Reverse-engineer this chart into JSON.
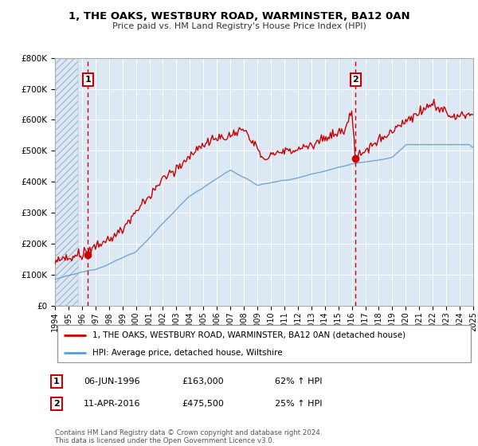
{
  "title": "1, THE OAKS, WESTBURY ROAD, WARMINSTER, BA12 0AN",
  "subtitle": "Price paid vs. HM Land Registry's House Price Index (HPI)",
  "legend_line1": "1, THE OAKS, WESTBURY ROAD, WARMINSTER, BA12 0AN (detached house)",
  "legend_line2": "HPI: Average price, detached house, Wiltshire",
  "annotation1_date": "06-JUN-1996",
  "annotation1_price": "£163,000",
  "annotation1_hpi": "62% ↑ HPI",
  "annotation2_date": "11-APR-2016",
  "annotation2_price": "£475,500",
  "annotation2_hpi": "25% ↑ HPI",
  "sale1_year": 1996.44,
  "sale1_value": 163000,
  "sale2_year": 2016.27,
  "sale2_value": 475500,
  "price_color": "#cc0000",
  "hpi_color": "#6699cc",
  "background_plot": "#dce9f5",
  "background_fig": "#ffffff",
  "grid_color": "#ffffff",
  "ylim_max": 800000,
  "xlim_min": 1994,
  "xlim_max": 2025,
  "footer_text": "Contains HM Land Registry data © Crown copyright and database right 2024.\nThis data is licensed under the Open Government Licence v3.0."
}
